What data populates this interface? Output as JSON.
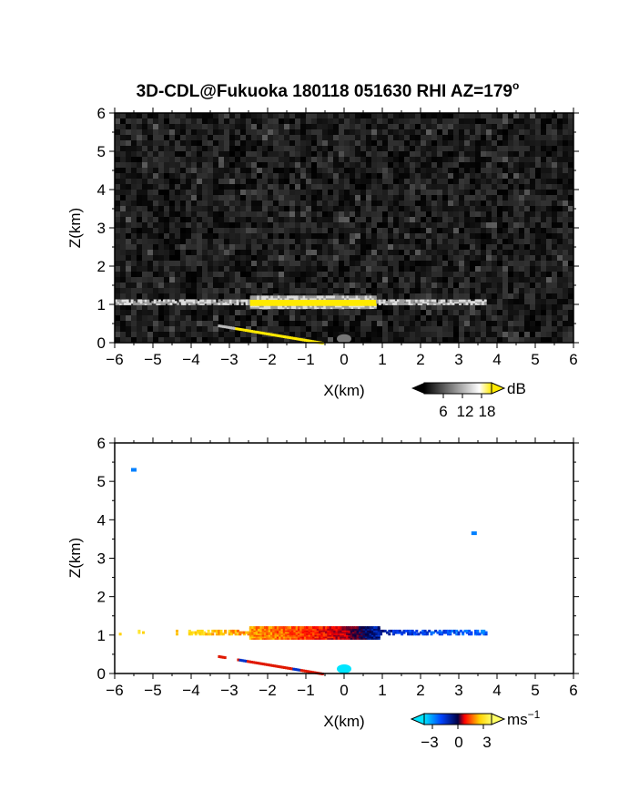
{
  "title": "3D-CDL@Fukuoka 180118 051630 RHI AZ=179",
  "title_suffix": "o",
  "chart_data": [
    {
      "type": "heatmap",
      "panel": "backscatter",
      "xlabel": "X(km)",
      "ylabel": "Z(km)",
      "xlim": [
        -6,
        6
      ],
      "ylim": [
        0,
        6
      ],
      "xticks": [
        -6,
        -5,
        -4,
        -3,
        -2,
        -1,
        0,
        1,
        2,
        3,
        4,
        5,
        6
      ],
      "yticks": [
        0,
        1,
        2,
        3,
        4,
        5,
        6
      ],
      "background": "noisy grayscale (low SNR)",
      "features": [
        {
          "name": "layer",
          "x_range": [
            -6,
            3.7
          ],
          "z": 1.1,
          "strong_x_range": [
            -2.5,
            0.8
          ]
        },
        {
          "name": "ground_clutter",
          "x_range": [
            -3.3,
            -0.6
          ],
          "z_range": [
            0.45,
            0.0
          ]
        },
        {
          "name": "spot",
          "x": 0.0,
          "z": 0.15
        }
      ],
      "colorbar": {
        "unit": "dB",
        "ticks": [
          "6",
          "12",
          "18"
        ],
        "min": 0,
        "max": 21,
        "colors": [
          "#000000",
          "#ffffff",
          "#ffea00"
        ]
      }
    },
    {
      "type": "heatmap",
      "panel": "doppler_velocity",
      "xlabel": "X(km)",
      "ylabel": "Z(km)",
      "xlim": [
        -6,
        6
      ],
      "ylim": [
        0,
        6
      ],
      "xticks": [
        -6,
        -5,
        -4,
        -3,
        -2,
        -1,
        0,
        1,
        2,
        3,
        4,
        5,
        6
      ],
      "yticks": [
        0,
        1,
        2,
        3,
        4,
        5,
        6
      ],
      "features": [
        {
          "name": "layer",
          "x_range": [
            -6,
            3.7
          ],
          "z": 1.1,
          "velocity_profile": [
            [
              -6,
              3
            ],
            [
              -3.5,
              2.5
            ],
            [
              -2,
              1.8
            ],
            [
              -1,
              1.2
            ],
            [
              0,
              0.3
            ],
            [
              0.6,
              -1.2
            ],
            [
              1.5,
              -2.2
            ],
            [
              3.7,
              -2.6
            ]
          ]
        },
        {
          "name": "ground_clutter",
          "x_range": [
            -3.3,
            -0.6
          ],
          "z_range": [
            0.45,
            0.0
          ],
          "velocity": 1.5
        },
        {
          "name": "spot",
          "x": 0.0,
          "z": 0.12,
          "velocity": -3
        },
        {
          "name": "isolated",
          "x": -5.5,
          "z": 5.3,
          "velocity": -3
        },
        {
          "name": "isolated",
          "x": 3.4,
          "z": 3.65,
          "velocity": -3
        }
      ],
      "colorbar": {
        "unit": "ms",
        "unit_exp": "−1",
        "ticks": [
          "−3",
          "0",
          "3"
        ],
        "min": -4,
        "max": 4,
        "colors": [
          "#00e5ff",
          "#0044ff",
          "#000044",
          "#ff0000",
          "#ffd000",
          "#ffff66"
        ]
      }
    }
  ]
}
